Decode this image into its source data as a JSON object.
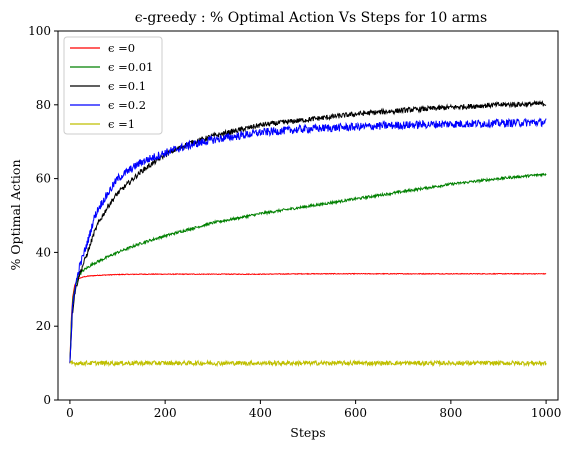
{
  "chart_data": {
    "type": "line",
    "title": "ϵ-greedy : % Optimal Action Vs Steps for 10 arms",
    "xlabel": "Steps",
    "ylabel": "% Optimal Action",
    "xlim": [
      -25,
      1025
    ],
    "ylim": [
      0,
      100
    ],
    "xticks": [
      0,
      200,
      400,
      600,
      800,
      1000
    ],
    "yticks": [
      0,
      20,
      40,
      60,
      80,
      100
    ],
    "legend": "top-left",
    "grid": false,
    "series": [
      {
        "name": "ϵ =0",
        "color": "#ff0000",
        "x": [
          0,
          3,
          6,
          10,
          15,
          20,
          30,
          40,
          60,
          80,
          100,
          150,
          200,
          300,
          400,
          500,
          600,
          700,
          800,
          900,
          1000
        ],
        "y": [
          10,
          22,
          28,
          31,
          32.5,
          33,
          33.4,
          33.6,
          33.8,
          33.9,
          34,
          34.1,
          34.1,
          34.1,
          34.1,
          34.2,
          34.2,
          34.2,
          34.2,
          34.2,
          34.2
        ],
        "noise": 0.1
      },
      {
        "name": "ϵ =0.01",
        "color": "#008000",
        "x": [
          0,
          3,
          6,
          10,
          15,
          20,
          30,
          50,
          100,
          150,
          200,
          300,
          400,
          500,
          600,
          700,
          800,
          900,
          1000
        ],
        "y": [
          10,
          21,
          27,
          30,
          32.5,
          34,
          35.3,
          37,
          40,
          42.5,
          44.5,
          48,
          50.5,
          52.5,
          54.5,
          56.5,
          58.5,
          60,
          61.2
        ],
        "noise": 0.35
      },
      {
        "name": "ϵ =0.1",
        "color": "#000000",
        "x": [
          0,
          5,
          10,
          20,
          30,
          40,
          50,
          60,
          80,
          100,
          150,
          200,
          250,
          300,
          350,
          400,
          500,
          600,
          700,
          800,
          900,
          1000
        ],
        "y": [
          10,
          23,
          29,
          34,
          37.5,
          41,
          45,
          48,
          52.5,
          56,
          62,
          66.5,
          69.5,
          71.5,
          73,
          74.5,
          76,
          77.5,
          78.5,
          79.3,
          80,
          80.3
        ],
        "noise": 0.7
      },
      {
        "name": "ϵ =0.2",
        "color": "#0000ff",
        "x": [
          0,
          5,
          10,
          20,
          30,
          40,
          50,
          60,
          80,
          100,
          150,
          200,
          250,
          300,
          350,
          400,
          500,
          600,
          700,
          800,
          900,
          1000
        ],
        "y": [
          10,
          24,
          30,
          36,
          40,
          44,
          49,
          52,
          56,
          60,
          64.5,
          67,
          69,
          70.5,
          71.5,
          72.5,
          73.5,
          74,
          74.5,
          74.8,
          75,
          75.3
        ],
        "noise": 1.1
      },
      {
        "name": "ϵ =1",
        "color": "#bfbf00",
        "x": [
          0,
          1000
        ],
        "y": [
          10,
          10
        ],
        "noise": 0.6
      }
    ]
  }
}
